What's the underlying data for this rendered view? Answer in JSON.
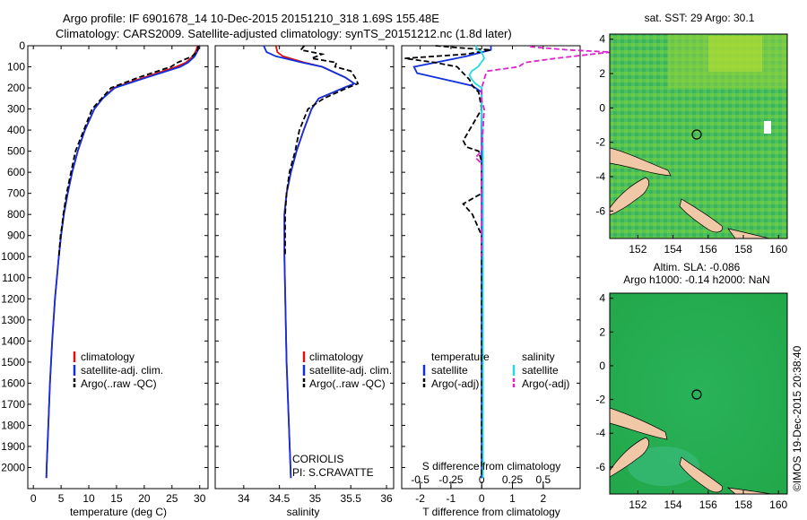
{
  "header": {
    "line1": "Argo profile: IF 6901678_14 10-Dec-2015 20151210_318 1.69S 155.48E",
    "line2": "Climatology: CARS2009. Satellite-adjusted climatology: synTS_20151212.nc (1.8d later)"
  },
  "colors": {
    "climatology": "#e01010",
    "satellite": "#1030e0",
    "argo": "#000000",
    "sal_satellite": "#22dddd",
    "sal_argo": "#dd22cc",
    "land": "#f0c8a8",
    "ocean": "#22aa44"
  },
  "chart_data": [
    {
      "type": "line",
      "id": "temperature",
      "xlabel": "temperature (deg C)",
      "ylabel": "",
      "xlim": [
        -1,
        31.5
      ],
      "ylim": [
        2100,
        0
      ],
      "xticks": [
        0,
        5,
        10,
        15,
        20,
        25,
        30
      ],
      "yticks": [
        0,
        100,
        200,
        300,
        400,
        500,
        600,
        700,
        800,
        900,
        1000,
        1100,
        1200,
        1300,
        1400,
        1500,
        1600,
        1700,
        1800,
        1900,
        2000
      ],
      "legend": [
        "climatology",
        "satellite-adj. clim.",
        "Argo(..raw -QC)"
      ],
      "series": [
        {
          "name": "climatology",
          "depth": [
            0,
            20,
            50,
            80,
            100,
            150,
            200,
            250,
            300,
            400,
            500,
            600,
            700,
            800,
            900,
            1000,
            1200,
            1400,
            1600,
            1800,
            2000,
            2050
          ],
          "values": [
            29.6,
            29.4,
            28.8,
            27.5,
            25.8,
            20.0,
            14.5,
            12.5,
            11.0,
            9.3,
            8.0,
            7.0,
            6.2,
            5.5,
            5.0,
            4.6,
            3.9,
            3.4,
            3.0,
            2.7,
            2.4,
            2.35
          ]
        },
        {
          "name": "satellite-adj. clim.",
          "depth": [
            0,
            20,
            50,
            80,
            100,
            150,
            200,
            250,
            300,
            400,
            500,
            600,
            700,
            800,
            900,
            1000,
            1200,
            1400,
            1600,
            1800,
            2000,
            2050
          ],
          "values": [
            29.9,
            29.7,
            29.1,
            27.9,
            26.5,
            20.5,
            14.7,
            12.5,
            11.0,
            9.3,
            8.0,
            7.0,
            6.2,
            5.5,
            5.0,
            4.6,
            3.9,
            3.4,
            3.0,
            2.7,
            2.4,
            2.35
          ]
        },
        {
          "name": "Argo(..raw -QC)",
          "depth": [
            0,
            10,
            30,
            50,
            80,
            100,
            150,
            200,
            250,
            300,
            400,
            500,
            600,
            700,
            800,
            850,
            900,
            1000
          ],
          "values": [
            29.8,
            29.7,
            29.5,
            28.6,
            26.0,
            24.8,
            19.0,
            14.0,
            12.3,
            10.6,
            9.1,
            7.6,
            6.8,
            6.0,
            5.4,
            5.2,
            4.9,
            4.6
          ]
        }
      ]
    },
    {
      "type": "line",
      "id": "salinity",
      "xlabel": "salinity",
      "xlim": [
        33.6,
        36.1
      ],
      "ylim": [
        2100,
        0
      ],
      "xticks": [
        34,
        34.5,
        35,
        35.5,
        36
      ],
      "legend": [
        "climatology",
        "satellite-adj. clim.",
        "Argo(..raw -QC)"
      ],
      "annotations": [
        "CORIOLIS",
        "PI: S.CRAVATTE"
      ],
      "series": [
        {
          "name": "climatology",
          "depth": [
            0,
            30,
            50,
            80,
            100,
            150,
            180,
            200,
            250,
            300,
            400,
            500,
            600,
            700,
            800,
            1000,
            1500,
            2050
          ],
          "values": [
            34.45,
            34.47,
            34.55,
            34.85,
            35.1,
            35.42,
            35.55,
            35.4,
            35.05,
            34.95,
            34.84,
            34.74,
            34.66,
            34.6,
            34.57,
            34.57,
            34.6,
            34.66
          ]
        },
        {
          "name": "satellite-adj. clim.",
          "depth": [
            0,
            30,
            50,
            80,
            100,
            150,
            180,
            200,
            250,
            300,
            400,
            500,
            600,
            700,
            800,
            1000,
            1500,
            2050
          ],
          "values": [
            34.28,
            34.32,
            34.45,
            34.82,
            35.1,
            35.42,
            35.55,
            35.4,
            35.05,
            34.95,
            34.84,
            34.74,
            34.66,
            34.6,
            34.57,
            34.57,
            34.6,
            34.66
          ]
        },
        {
          "name": "Argo(..raw -QC)",
          "depth": [
            0,
            20,
            40,
            60,
            80,
            100,
            120,
            150,
            180,
            200,
            250,
            300,
            400,
            500,
            600,
            700,
            800,
            900,
            1000
          ],
          "values": [
            34.85,
            34.8,
            35.1,
            34.95,
            35.3,
            35.28,
            35.5,
            35.56,
            35.6,
            35.45,
            35.12,
            34.9,
            34.78,
            34.72,
            34.64,
            34.6,
            34.58,
            34.58,
            34.58
          ]
        }
      ]
    },
    {
      "type": "line",
      "id": "differences",
      "xlabel_top": "S difference from climatology",
      "xlabel": "T difference from climatology",
      "xlim": [
        -2.6,
        3.2
      ],
      "ylim": [
        2100,
        0
      ],
      "xticks": [
        -2,
        -1,
        0,
        1,
        2
      ],
      "top_ticks": [
        -0.5,
        -0.25,
        0,
        0.25,
        0.5
      ],
      "legend_headers": [
        "temperature",
        "salinity"
      ],
      "legend": [
        "satellite",
        "Argo(-adj)",
        "satellite",
        "Argo(-adj)"
      ],
      "series": [
        {
          "name": "T satellite",
          "depth": [
            0,
            20,
            50,
            80,
            100,
            130,
            160,
            190,
            220,
            250,
            300,
            500,
            800,
            1000,
            2050
          ],
          "values": [
            0.3,
            0.3,
            -0.5,
            -1.5,
            -2.2,
            -2.1,
            -1.2,
            -0.3,
            0.0,
            0.0,
            0.0,
            0.0,
            0.0,
            0.0,
            0.0
          ]
        },
        {
          "name": "T Argo(-adj)",
          "depth": [
            0,
            10,
            20,
            40,
            60,
            80,
            100,
            130,
            160,
            190,
            220,
            300,
            450,
            480,
            500,
            550,
            700,
            750,
            800,
            900,
            1000,
            2050
          ],
          "values": [
            -1.5,
            -0.7,
            0.3,
            -0.5,
            -2.5,
            -1.5,
            -0.8,
            -0.6,
            -0.4,
            -0.3,
            -0.1,
            0.0,
            -0.6,
            -0.5,
            -0.1,
            0.0,
            0.0,
            -0.6,
            -0.3,
            0.0,
            0.0,
            0.0
          ]
        },
        {
          "name": "S satellite",
          "depth": [
            0,
            20,
            30,
            60,
            100,
            120,
            140,
            160,
            180,
            200,
            250,
            300,
            500,
            1000,
            2050
          ],
          "values": [
            -0.05,
            -0.03,
            0.0,
            0.02,
            -0.03,
            -0.08,
            -0.1,
            -0.08,
            -0.05,
            0.0,
            0.0,
            0.0,
            0.01,
            0.01,
            0.01
          ]
        },
        {
          "name": "S Argo(-adj)",
          "depth": [
            0,
            5,
            20,
            30,
            40,
            60,
            80,
            100,
            120,
            140,
            160,
            200,
            260,
            300,
            500,
            530,
            560,
            1000
          ],
          "values": [
            0.4,
            0.4,
            0.7,
            1.05,
            0.9,
            0.6,
            0.35,
            0.3,
            0.05,
            0.03,
            0.02,
            0.0,
            0.0,
            0.02,
            0.0,
            -0.05,
            0.0,
            0.0
          ]
        }
      ]
    },
    {
      "type": "heatmap",
      "id": "sst-map",
      "title": "sat. SST: 29 Argo: 30.1",
      "xlim": [
        150.4,
        160.5
      ],
      "ylim": [
        -7.6,
        4.3
      ],
      "xticks": [
        152,
        154,
        156,
        158,
        160
      ],
      "yticks": [
        -6,
        -4,
        -2,
        0,
        2,
        4
      ],
      "argo_location": [
        155.48,
        -1.69
      ]
    },
    {
      "type": "heatmap",
      "id": "sla-map",
      "title_line1": "Altim. SLA: -0.086",
      "title_line2": "Argo h1000: -0.14 h2000: NaN",
      "xlim": [
        150.4,
        160.5
      ],
      "ylim": [
        -7.6,
        4.3
      ],
      "xticks": [
        152,
        154,
        156,
        158,
        160
      ],
      "yticks": [
        -6,
        -4,
        -2,
        0,
        2,
        4
      ],
      "argo_location": [
        155.48,
        -1.69
      ]
    }
  ],
  "footer": {
    "credit": "©IMOS 19-Dec-2015 20:38:40"
  }
}
